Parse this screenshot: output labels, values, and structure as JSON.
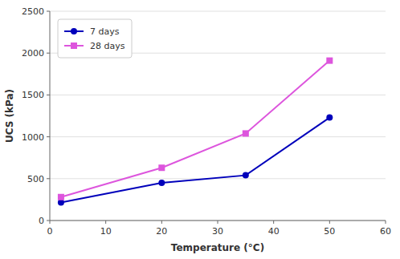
{
  "chart_data": {
    "type": "line",
    "x": [
      2,
      20,
      35,
      50
    ],
    "series": [
      {
        "name": "7 days",
        "color": "#0000bb",
        "marker": "circle",
        "values": [
          215,
          450,
          540,
          1230
        ]
      },
      {
        "name": "28 days",
        "color": "#dd55dd",
        "marker": "square",
        "values": [
          280,
          630,
          1040,
          1910
        ]
      }
    ],
    "xlabel": "Temperature (°C)",
    "ylabel": "UCS (kPa)",
    "xlim": [
      0,
      60
    ],
    "ylim": [
      0,
      2500
    ],
    "xticks": [
      0,
      10,
      20,
      30,
      40,
      50,
      60
    ],
    "yticks": [
      0,
      500,
      1000,
      1500,
      2000,
      2500
    ],
    "grid": "y",
    "legend": "upper left"
  }
}
